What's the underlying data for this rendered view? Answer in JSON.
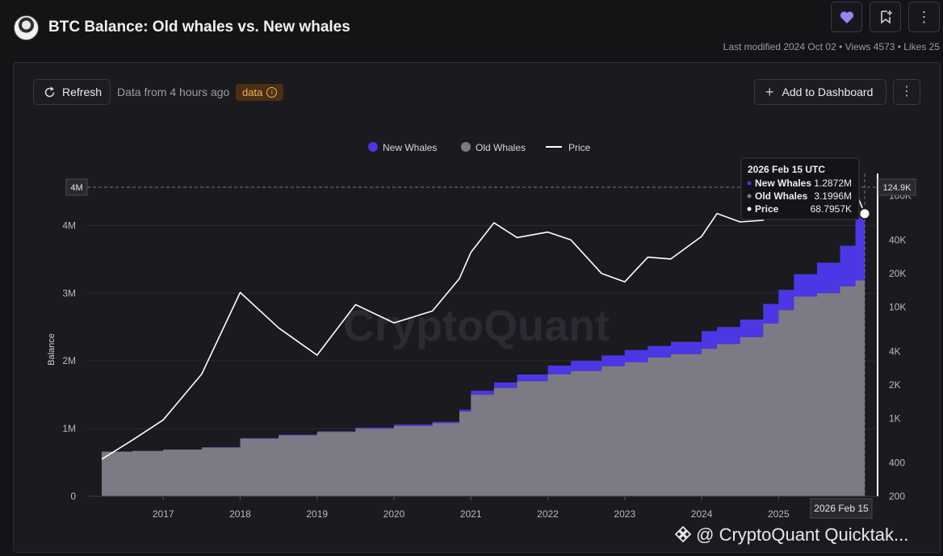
{
  "header": {
    "title": "BTC Balance: Old whales vs. New whales",
    "meta": "Last modified 2024 Oct 02 • Views 4573 • Likes 25"
  },
  "toolbar": {
    "refresh_label": "Refresh",
    "data_from": "Data from 4 hours ago",
    "badge_label": "data",
    "add_dashboard_label": "Add to Dashboard"
  },
  "footer": {
    "brand": "@ CryptoQuant Quicktak..."
  },
  "watermark": "CryptoQuant",
  "colors": {
    "new_whales": "#4b37e3",
    "old_whales": "#7c7b85",
    "price": "#ffffff"
  },
  "chart_data": {
    "type": "area",
    "title": "",
    "ylabel": "Balance",
    "ylim": [
      0,
      4600000
    ],
    "y2_scale": "log",
    "y2_ticks": [
      "200",
      "400",
      "1K",
      "2K",
      "4K",
      "10K",
      "20K",
      "40K",
      "100K"
    ],
    "y_ticks": [
      "0",
      "1M",
      "2M",
      "3M",
      "4M"
    ],
    "x_ticks": [
      "2017",
      "2018",
      "2019",
      "2020",
      "2021",
      "2022",
      "2023",
      "2024",
      "2025"
    ],
    "legend": [
      "New Whales",
      "Old Whales",
      "Price"
    ],
    "legend_position": "top-center",
    "crosshair": {
      "date": "2026 Feb 15",
      "y_label": "4M",
      "y2_label": "124.9K"
    },
    "tooltip": {
      "title": "2026 Feb 15 UTC",
      "rows": [
        {
          "name": "New Whales",
          "value": "1.2872M"
        },
        {
          "name": "Old Whales",
          "value": "3.1996M"
        },
        {
          "name": "Price",
          "value": "68.7957K"
        }
      ]
    },
    "x": [
      2016.2,
      2016.6,
      2017.0,
      2017.5,
      2018.0,
      2018.5,
      2019.0,
      2019.5,
      2020.0,
      2020.5,
      2020.85,
      2021.0,
      2021.3,
      2021.6,
      2022.0,
      2022.3,
      2022.7,
      2023.0,
      2023.3,
      2023.6,
      2024.0,
      2024.2,
      2024.5,
      2024.8,
      2025.0,
      2025.2,
      2025.5,
      2025.8,
      2026.0,
      2026.12
    ],
    "series": [
      {
        "name": "Old Whales",
        "values": [
          660000,
          670000,
          690000,
          720000,
          850000,
          900000,
          950000,
          1000000,
          1040000,
          1080000,
          1250000,
          1500000,
          1600000,
          1700000,
          1800000,
          1850000,
          1920000,
          1980000,
          2050000,
          2100000,
          2180000,
          2250000,
          2350000,
          2550000,
          2750000,
          2950000,
          3000000,
          3100000,
          3190000,
          3199600
        ]
      },
      {
        "name": "New Whales",
        "values": [
          0,
          0,
          0,
          5000,
          10000,
          10000,
          10000,
          15000,
          20000,
          20000,
          30000,
          60000,
          80000,
          100000,
          130000,
          150000,
          160000,
          180000,
          170000,
          180000,
          260000,
          250000,
          260000,
          290000,
          300000,
          330000,
          450000,
          600000,
          950000,
          1287200
        ]
      },
      {
        "name": "Price",
        "values": [
          430,
          640,
          970,
          2500,
          13500,
          6500,
          3700,
          10500,
          7200,
          9200,
          18000,
          31000,
          57000,
          42000,
          47000,
          40000,
          20000,
          16800,
          28000,
          27000,
          43000,
          69000,
          58000,
          60000,
          94000,
          84000,
          107000,
          115000,
          110000,
          68795.7
        ]
      }
    ]
  }
}
